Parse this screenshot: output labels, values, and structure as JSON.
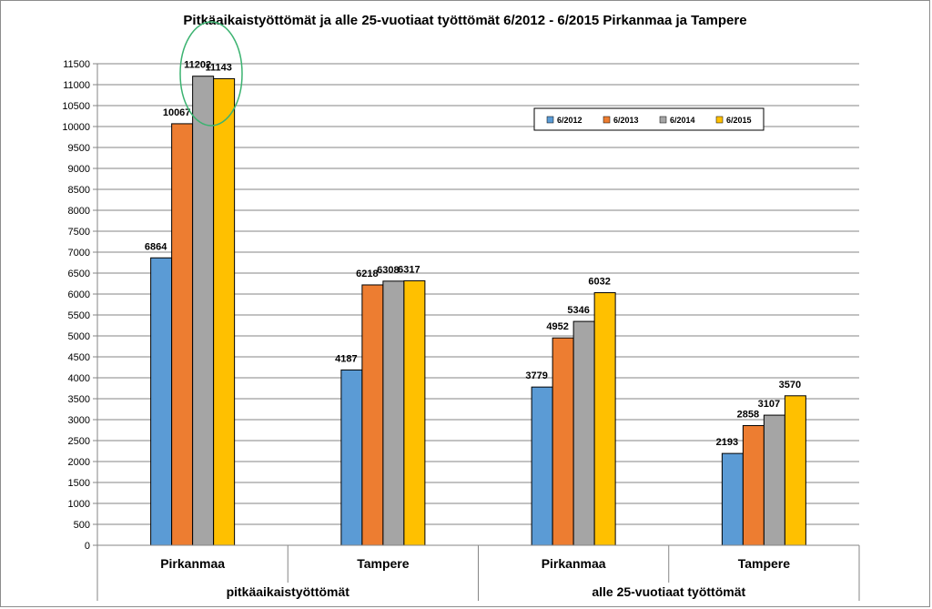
{
  "chart_data": {
    "type": "bar",
    "title": "Pitkäaikaistyöttömät ja alle 25-vuotiaat työttömät 6/2012 - 6/2015 Pirkanmaa ja Tampere",
    "categories": [
      "Pirkanmaa",
      "Tampere",
      "Pirkanmaa",
      "Tampere"
    ],
    "groups": [
      {
        "label": "pitkäaikaistyöttömät",
        "categories": [
          "Pirkanmaa",
          "Tampere"
        ]
      },
      {
        "label": "alle 25-vuotiaat työttömät",
        "categories": [
          "Pirkanmaa",
          "Tampere"
        ]
      }
    ],
    "series": [
      {
        "name": "6/2012",
        "color": "#5b9bd5",
        "values": [
          6864,
          4187,
          3779,
          2193
        ]
      },
      {
        "name": "6/2013",
        "color": "#ed7d31",
        "values": [
          10067,
          6218,
          4952,
          2858
        ]
      },
      {
        "name": "6/2014",
        "color": "#a5a5a5",
        "values": [
          11202,
          6308,
          5346,
          3107
        ]
      },
      {
        "name": "6/2015",
        "color": "#ffc000",
        "values": [
          11143,
          6317,
          6032,
          3570
        ]
      }
    ],
    "ylim": [
      0,
      11500
    ],
    "ytick_step": 500,
    "grid": true,
    "legend": "top-right",
    "annotation": {
      "type": "ellipse",
      "color": "#3cb371",
      "highlights": "Pirkanmaa 6/2014 and 6/2015 (pitkäaikaistyöttömät)"
    }
  }
}
